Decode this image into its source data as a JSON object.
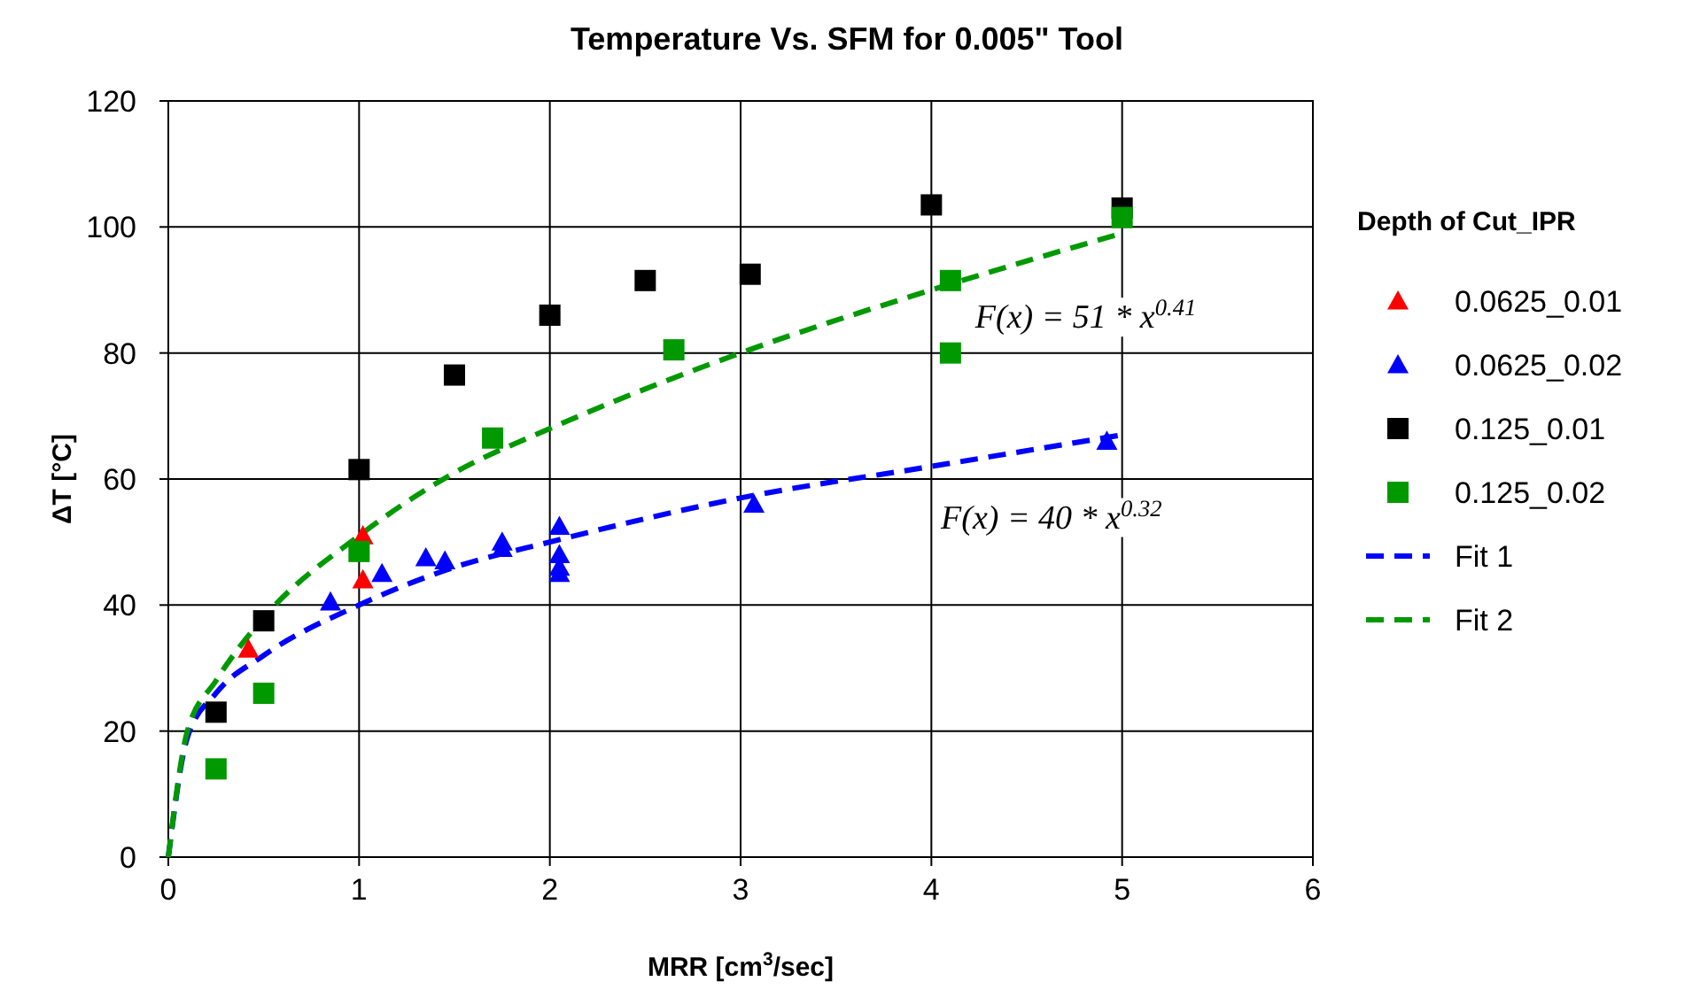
{
  "chart_data": {
    "type": "scatter",
    "title": "Temperature Vs. SFM for 0.005\" Tool",
    "xlabel": "MRR [cm$^{3}$/sec]",
    "ylabel": "ΔT [°C]",
    "legend_title": "Depth of Cut_IPR",
    "legend": "right",
    "grid": true,
    "xlim": [
      0,
      6
    ],
    "xticks": [
      0,
      1,
      2,
      3,
      4,
      5,
      6
    ],
    "ylim": [
      0,
      120
    ],
    "yticks": [
      0,
      20,
      40,
      60,
      80,
      100,
      120
    ],
    "annotations": [
      "F(x) = 51 * x$^{0.41}$",
      "F(x) = 40 * x$^{0.32}$"
    ],
    "series": [
      {
        "name": "0.0625_0.01",
        "color": "#ff0000",
        "marker": "triangle",
        "x": [
          0.42,
          1.02,
          1.02
        ],
        "values": [
          33,
          51,
          44
        ]
      },
      {
        "name": "0.0625_0.02",
        "color": "#0000ff",
        "marker": "triangle",
        "x": [
          0.85,
          1.12,
          1.35,
          1.45,
          1.75,
          1.75,
          2.05,
          2.05,
          2.05,
          2.05,
          3.07,
          4.92
        ],
        "values": [
          40.5,
          45,
          47.5,
          47,
          50,
          49,
          52.5,
          48,
          46,
          45,
          56,
          66
        ]
      },
      {
        "name": "0.125_0.01",
        "color": "#000000",
        "marker": "square",
        "x": [
          0.25,
          0.5,
          1,
          1.5,
          2,
          2.5,
          3.05,
          4,
          5
        ],
        "values": [
          23,
          37.5,
          61.5,
          76.5,
          86,
          91.5,
          92.5,
          103.5,
          103
        ]
      },
      {
        "name": "0.125_0.02",
        "color": "#009900",
        "marker": "square",
        "x": [
          0.25,
          0.5,
          1,
          1.7,
          2.65,
          4.1,
          4.1,
          5
        ],
        "values": [
          14,
          26,
          48.5,
          66.5,
          80.5,
          91.5,
          80,
          101.5
        ]
      },
      {
        "name": "Fit 1",
        "type": "line",
        "color": "#0000ff",
        "marker": "none",
        "line_style": "dashed",
        "x": [
          0,
          0.1,
          0.25,
          0.5,
          1,
          1.5,
          2,
          3,
          4,
          5
        ],
        "values": [
          0,
          19,
          26,
          32,
          40,
          46,
          50,
          57,
          62,
          67
        ]
      },
      {
        "name": "Fit 2",
        "type": "line",
        "color": "#009900",
        "marker": "none",
        "line_style": "dashed",
        "x": [
          0,
          0.1,
          0.25,
          0.5,
          1,
          1.5,
          2,
          3,
          4,
          5
        ],
        "values": [
          0,
          20,
          28,
          38,
          51,
          61,
          68,
          80,
          90,
          99
        ]
      }
    ]
  }
}
